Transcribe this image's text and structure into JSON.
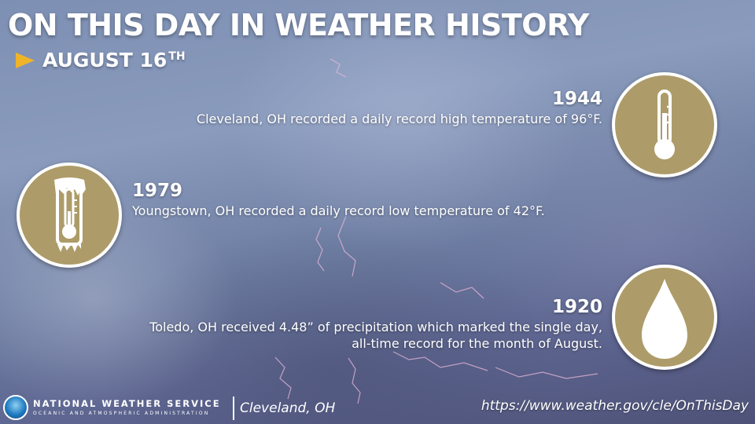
{
  "header": {
    "title": "ON THIS DAY IN WEATHER HISTORY",
    "date_main": "AUGUST 16",
    "date_suffix": "TH",
    "arrow_icon": "play-triangle-icon",
    "arrow_color": "#f0b429"
  },
  "events": [
    {
      "year": "1944",
      "text": "Cleveland, OH recorded a daily record high temperature of 96°F.",
      "icon": "thermometer-icon"
    },
    {
      "year": "1979",
      "text": "Youngstown, OH recorded a daily record low temperature of 42°F.",
      "icon": "frozen-thermometer-icon"
    },
    {
      "year": "1920",
      "text_line1": "Toledo, OH received 4.48” of precipitation which marked the single day,",
      "text_line2": "all-time record for the month of August.",
      "icon": "raindrop-icon"
    }
  ],
  "footer": {
    "agency": "NATIONAL WEATHER SERVICE",
    "parent_agency": "OCEANIC AND ATMOSPHERIC ADMINISTRATION",
    "office": "Cleveland, OH",
    "url": "https://www.weather.gov/cle/OnThisDay",
    "logo_icon": "noaa-logo-icon"
  },
  "colors": {
    "badge_fill": "#ad9c69",
    "badge_border": "#ffffff",
    "sky_base": "#7d8fb3",
    "lightning": "#e7b8d8"
  }
}
